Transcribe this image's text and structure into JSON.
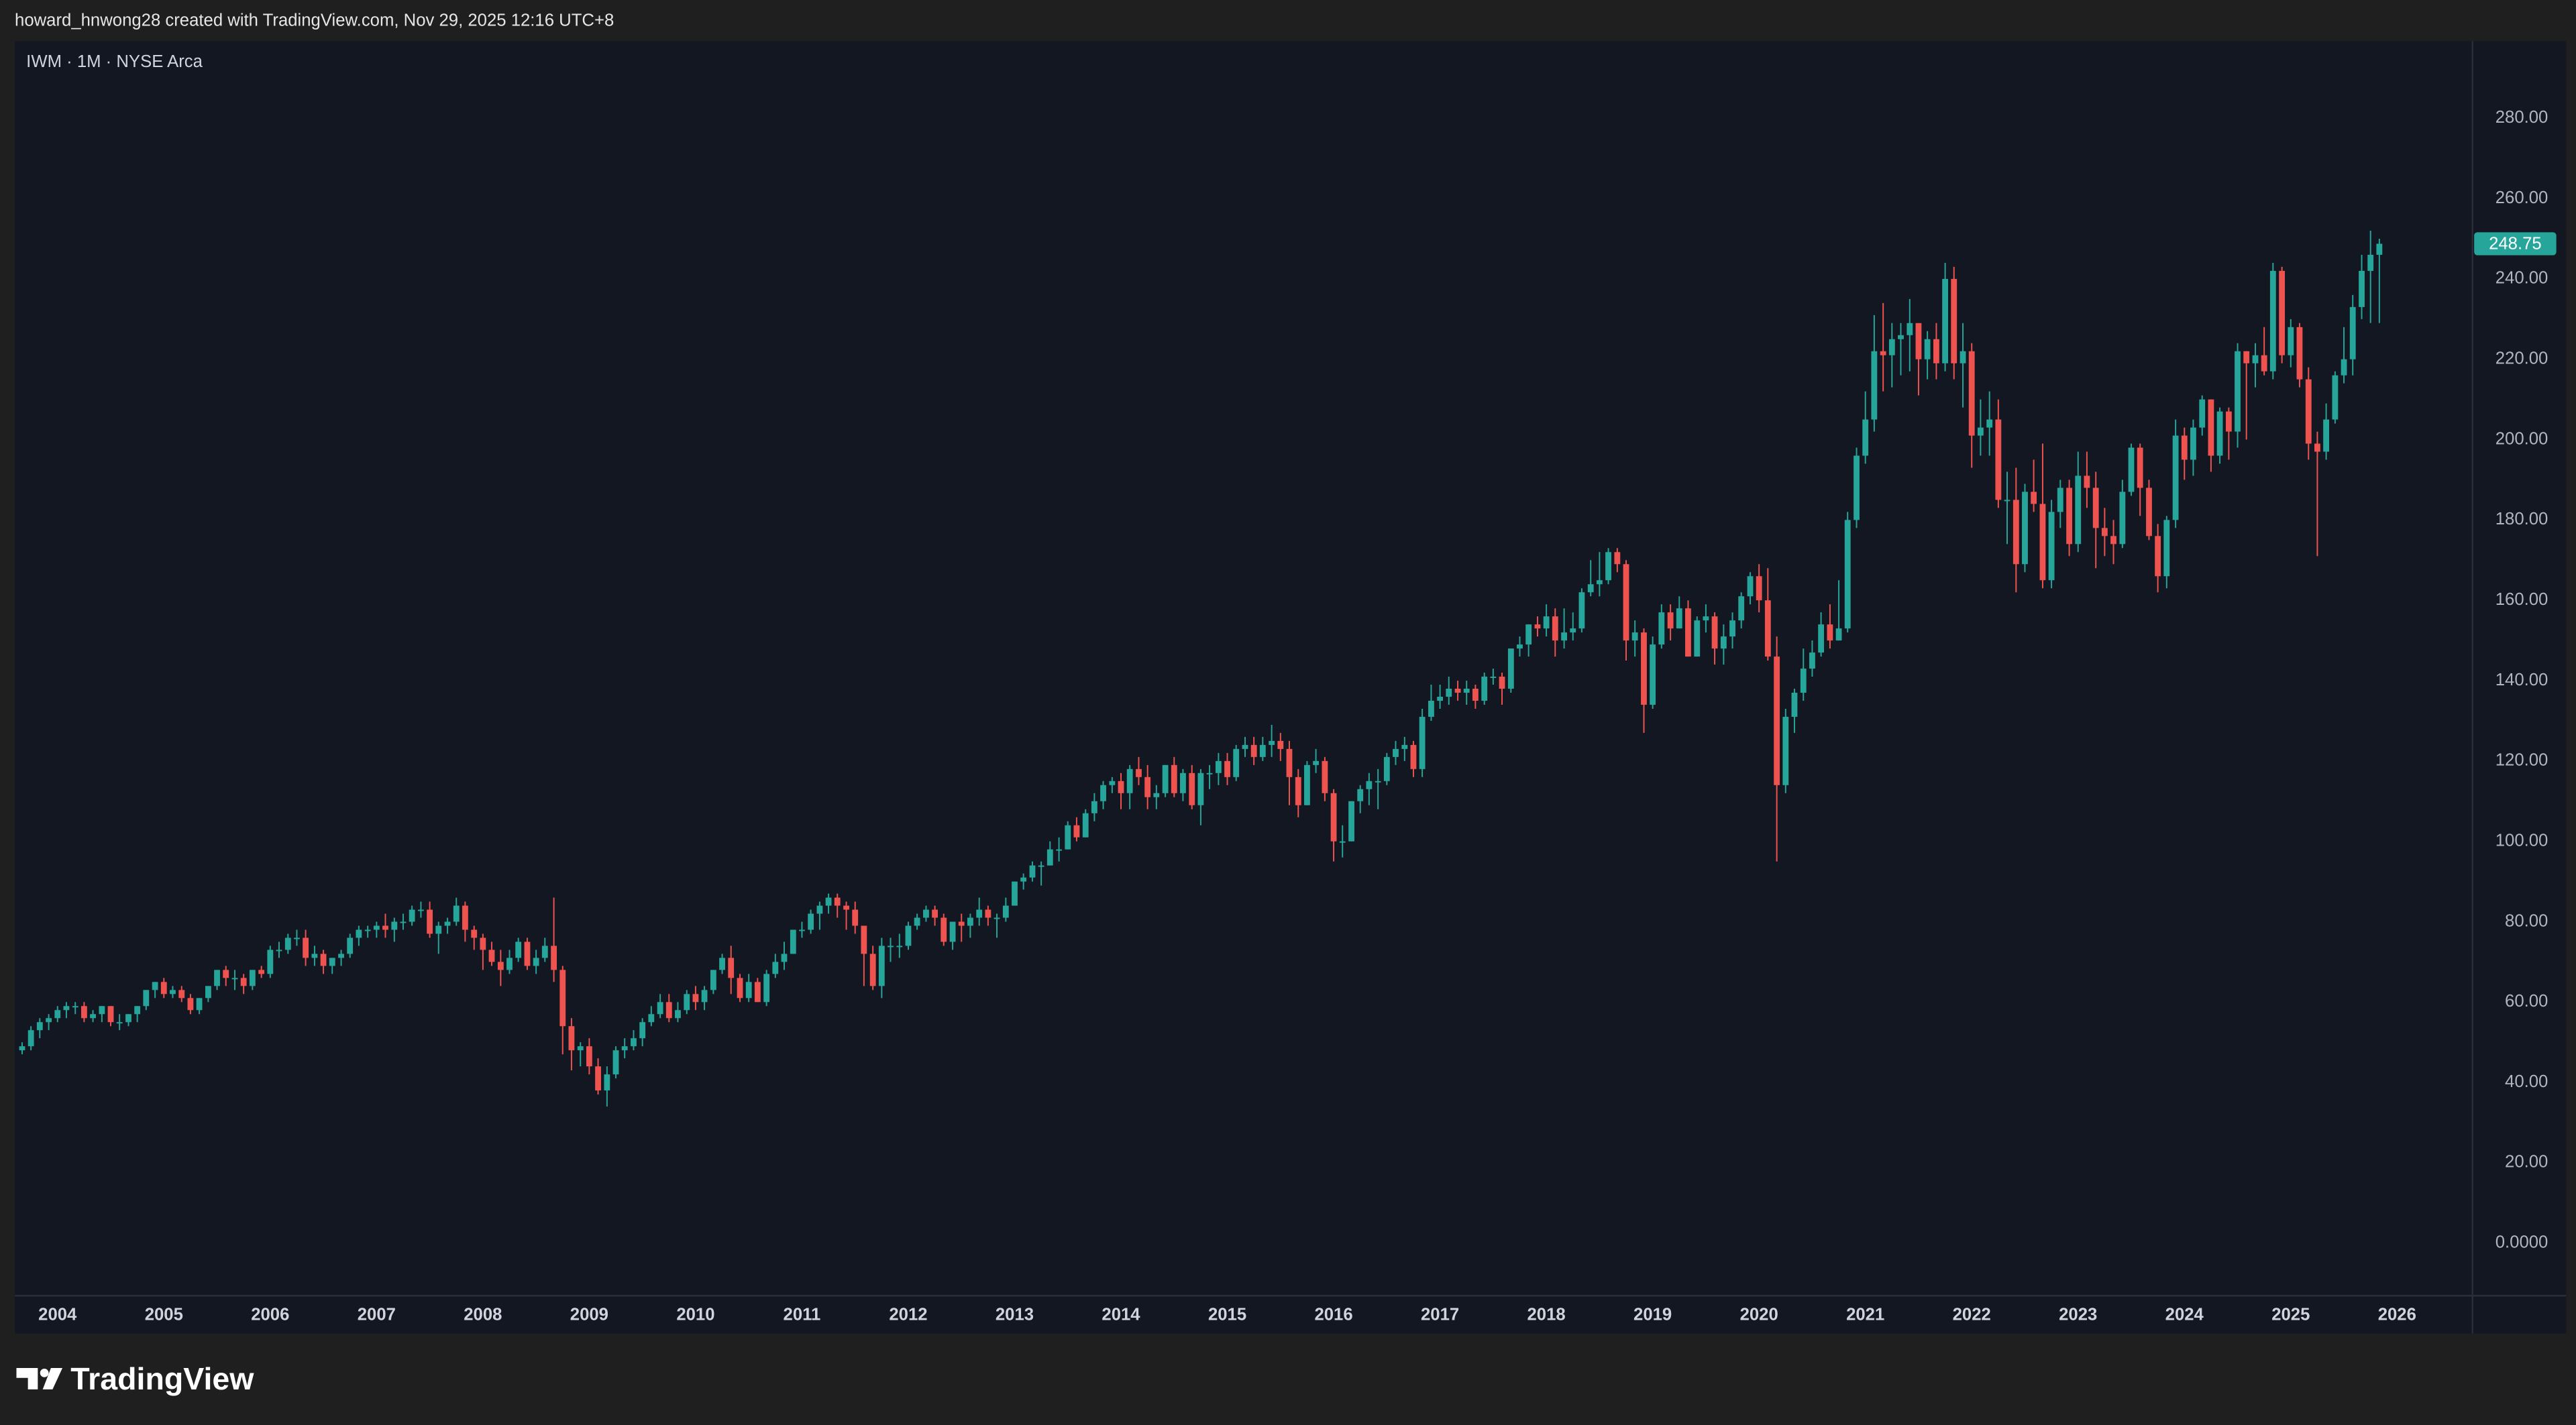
{
  "header": {
    "attribution": "howard_hnwong28 created with TradingView.com, Nov 29, 2025 12:16 UTC+8"
  },
  "footer": {
    "brand": "TradingView"
  },
  "chart_data": {
    "type": "candlestick",
    "title": "IWM · 1M · NYSE Arca",
    "up_color": "#26a69a",
    "down_color": "#ef5350",
    "grid": false,
    "xlim": [
      2003.598,
      2026.709
    ],
    "xticks": [
      2004,
      2005,
      2006,
      2007,
      2008,
      2009,
      2010,
      2011,
      2012,
      2013,
      2014,
      2015,
      2016,
      2017,
      2018,
      2019,
      2020,
      2021,
      2022,
      2023,
      2024,
      2025,
      2026
    ],
    "ylim": [
      -13.1,
      299.2
    ],
    "yticks": [
      {
        "value": 0,
        "label": "0.0000"
      },
      {
        "value": 20,
        "label": "20.00"
      },
      {
        "value": 40,
        "label": "40.00"
      },
      {
        "value": 60,
        "label": "60.00"
      },
      {
        "value": 80,
        "label": "80.00"
      },
      {
        "value": 100,
        "label": "100.00"
      },
      {
        "value": 120,
        "label": "120.00"
      },
      {
        "value": 140,
        "label": "140.00"
      },
      {
        "value": 160,
        "label": "160.00"
      },
      {
        "value": 180,
        "label": "180.00"
      },
      {
        "value": 200,
        "label": "200.00"
      },
      {
        "value": 220,
        "label": "220.00"
      },
      {
        "value": 240,
        "label": "240.00"
      },
      {
        "value": 260,
        "label": "260.00"
      },
      {
        "value": 280,
        "label": "280.00"
      }
    ],
    "x": [
      2003.667,
      2003.75,
      2003.833,
      2003.917,
      2004,
      2004.083,
      2004.167,
      2004.25,
      2004.333,
      2004.417,
      2004.5,
      2004.583,
      2004.667,
      2004.75,
      2004.833,
      2004.917,
      2005,
      2005.083,
      2005.167,
      2005.25,
      2005.333,
      2005.417,
      2005.5,
      2005.583,
      2005.667,
      2005.75,
      2005.833,
      2005.917,
      2006,
      2006.083,
      2006.167,
      2006.25,
      2006.333,
      2006.417,
      2006.5,
      2006.583,
      2006.667,
      2006.75,
      2006.833,
      2006.917,
      2007,
      2007.083,
      2007.167,
      2007.25,
      2007.333,
      2007.417,
      2007.5,
      2007.583,
      2007.667,
      2007.75,
      2007.833,
      2007.917,
      2008,
      2008.083,
      2008.167,
      2008.25,
      2008.333,
      2008.417,
      2008.5,
      2008.583,
      2008.667,
      2008.75,
      2008.833,
      2008.917,
      2009,
      2009.083,
      2009.167,
      2009.25,
      2009.333,
      2009.417,
      2009.5,
      2009.583,
      2009.667,
      2009.75,
      2009.833,
      2009.917,
      2010,
      2010.083,
      2010.167,
      2010.25,
      2010.333,
      2010.417,
      2010.5,
      2010.583,
      2010.667,
      2010.75,
      2010.833,
      2010.917,
      2011,
      2011.083,
      2011.167,
      2011.25,
      2011.333,
      2011.417,
      2011.5,
      2011.583,
      2011.667,
      2011.75,
      2011.833,
      2011.917,
      2012,
      2012.083,
      2012.167,
      2012.25,
      2012.333,
      2012.417,
      2012.5,
      2012.583,
      2012.667,
      2012.75,
      2012.833,
      2012.917,
      2013,
      2013.083,
      2013.167,
      2013.25,
      2013.333,
      2013.417,
      2013.5,
      2013.583,
      2013.667,
      2013.75,
      2013.833,
      2013.917,
      2014,
      2014.083,
      2014.167,
      2014.25,
      2014.333,
      2014.417,
      2014.5,
      2014.583,
      2014.667,
      2014.75,
      2014.833,
      2014.917,
      2015,
      2015.083,
      2015.167,
      2015.25,
      2015.333,
      2015.417,
      2015.5,
      2015.583,
      2015.667,
      2015.75,
      2015.833,
      2015.917,
      2016,
      2016.083,
      2016.167,
      2016.25,
      2016.333,
      2016.417,
      2016.5,
      2016.583,
      2016.667,
      2016.75,
      2016.833,
      2016.917,
      2017,
      2017.083,
      2017.167,
      2017.25,
      2017.333,
      2017.417,
      2017.5,
      2017.583,
      2017.667,
      2017.75,
      2017.833,
      2017.917,
      2018,
      2018.083,
      2018.167,
      2018.25,
      2018.333,
      2018.417,
      2018.5,
      2018.583,
      2018.667,
      2018.75,
      2018.833,
      2018.917,
      2019,
      2019.083,
      2019.167,
      2019.25,
      2019.333,
      2019.417,
      2019.5,
      2019.583,
      2019.667,
      2019.75,
      2019.833,
      2019.917,
      2020,
      2020.083,
      2020.167,
      2020.25,
      2020.333,
      2020.417,
      2020.5,
      2020.583,
      2020.667,
      2020.75,
      2020.833,
      2020.917,
      2021,
      2021.083,
      2021.167,
      2021.25,
      2021.333,
      2021.417,
      2021.5,
      2021.583,
      2021.667,
      2021.75,
      2021.833,
      2021.917,
      2022,
      2022.083,
      2022.167,
      2022.25,
      2022.333,
      2022.417,
      2022.5,
      2022.583,
      2022.667,
      2022.75,
      2022.833,
      2022.917,
      2023,
      2023.083,
      2023.167,
      2023.25,
      2023.333,
      2023.417,
      2023.5,
      2023.583,
      2023.667,
      2023.75,
      2023.833,
      2023.917,
      2024,
      2024.083,
      2024.167,
      2024.25,
      2024.333,
      2024.417,
      2024.5,
      2024.583,
      2024.667,
      2024.75,
      2024.833,
      2024.917,
      2025,
      2025.083,
      2025.167,
      2025.25,
      2025.333,
      2025.417,
      2025.5,
      2025.583,
      2025.667,
      2025.75,
      2025.833
    ],
    "open": [
      48,
      49,
      53,
      55,
      56,
      58,
      59,
      59,
      56,
      57,
      59,
      55,
      55,
      57,
      59,
      63,
      65,
      62,
      63,
      61,
      58,
      61,
      64,
      68,
      66,
      66,
      64,
      68,
      67,
      73,
      73,
      76,
      76,
      71,
      72,
      69,
      71,
      72,
      76,
      78,
      78,
      79,
      78,
      80,
      80,
      83,
      83,
      77,
      79,
      80,
      84,
      78,
      76,
      73,
      70,
      68,
      71,
      75,
      69,
      71,
      74,
      68,
      54,
      48,
      49,
      44,
      38,
      42,
      48,
      49,
      51,
      55,
      57,
      60,
      56,
      58,
      62,
      60,
      63,
      68,
      71,
      66,
      61,
      65,
      60,
      67,
      70,
      72,
      78,
      78,
      82,
      84,
      86,
      84,
      83,
      79,
      72,
      64,
      74,
      74,
      74,
      79,
      81,
      83,
      81,
      75,
      80,
      79,
      81,
      83,
      81,
      81,
      84,
      90,
      91,
      94,
      94,
      98,
      98,
      104,
      101,
      107,
      110,
      114,
      115,
      112,
      118,
      116,
      111,
      112,
      119,
      112,
      117,
      109,
      117,
      117,
      120,
      116,
      123,
      124,
      121,
      124,
      125,
      123,
      116,
      109,
      119,
      120,
      112,
      100,
      100,
      110,
      113,
      115,
      115,
      121,
      123,
      124,
      118,
      131,
      135,
      136,
      138,
      137,
      138,
      135,
      141,
      141,
      138,
      148,
      149,
      154,
      153,
      156,
      150,
      152,
      153,
      162,
      164,
      165,
      172,
      169,
      150,
      152,
      134,
      149,
      157,
      153,
      158,
      146,
      155,
      156,
      148,
      151,
      155,
      161,
      166,
      160,
      146,
      114,
      131,
      137,
      143,
      147,
      154,
      150,
      153,
      180,
      196,
      205,
      222,
      221,
      225,
      226,
      229,
      220,
      225,
      219,
      240,
      219,
      222,
      201,
      203,
      205,
      185,
      185,
      169,
      187,
      184,
      165,
      182,
      188,
      174,
      191,
      188,
      178,
      176,
      174,
      187,
      198,
      188,
      176,
      166,
      180,
      201,
      195,
      203,
      210,
      196,
      207,
      202,
      222,
      219,
      221,
      217,
      242,
      221,
      228,
      215,
      199,
      197,
      205,
      216,
      220,
      233,
      242,
      246
    ],
    "high": [
      50,
      54,
      56,
      57,
      59,
      60,
      60,
      60,
      58,
      59,
      59,
      57,
      57,
      59,
      63,
      65,
      66,
      64,
      64,
      62,
      61,
      64,
      68,
      69,
      68,
      67,
      68,
      69,
      74,
      75,
      77,
      78,
      78,
      74,
      73,
      71,
      73,
      77,
      79,
      79,
      80,
      82,
      81,
      82,
      84,
      85,
      85,
      80,
      81,
      86,
      85,
      79,
      77,
      75,
      73,
      73,
      76,
      76,
      73,
      76,
      86,
      69,
      56,
      50,
      51,
      46,
      44,
      49,
      51,
      53,
      56,
      59,
      62,
      62,
      60,
      63,
      64,
      64,
      68,
      72,
      74,
      67,
      67,
      66,
      68,
      72,
      75,
      78,
      80,
      83,
      85,
      87,
      87,
      85,
      85,
      79,
      74,
      76,
      76,
      77,
      80,
      82,
      84,
      84,
      82,
      80,
      82,
      82,
      86,
      84,
      82,
      86,
      90,
      92,
      95,
      95,
      100,
      101,
      105,
      106,
      108,
      112,
      115,
      116,
      117,
      119,
      121,
      119,
      114,
      119,
      121,
      118,
      119,
      118,
      119,
      122,
      122,
      124,
      126,
      126,
      126,
      129,
      127,
      125,
      118,
      120,
      123,
      121,
      113,
      104,
      110,
      114,
      117,
      118,
      122,
      125,
      126,
      125,
      133,
      139,
      139,
      141,
      140,
      140,
      139,
      142,
      143,
      142,
      148,
      151,
      154,
      156,
      159,
      158,
      158,
      157,
      163,
      170,
      172,
      173,
      173,
      170,
      155,
      153,
      151,
      159,
      159,
      161,
      160,
      156,
      159,
      157,
      154,
      157,
      162,
      167,
      169,
      168,
      151,
      133,
      138,
      148,
      150,
      157,
      159,
      165,
      182,
      198,
      212,
      231,
      234,
      229,
      229,
      235,
      229,
      227,
      229,
      244,
      243,
      229,
      224,
      210,
      212,
      210,
      192,
      193,
      189,
      195,
      199,
      185,
      190,
      190,
      197,
      197,
      192,
      183,
      180,
      190,
      199,
      199,
      190,
      179,
      181,
      205,
      203,
      205,
      211,
      210,
      208,
      208,
      224,
      222,
      224,
      228,
      244,
      243,
      230,
      229,
      218,
      202,
      209,
      217,
      228,
      236,
      246,
      252,
      250
    ],
    "low": [
      47,
      48,
      51,
      53,
      55,
      56,
      57,
      55,
      55,
      55,
      54,
      53,
      54,
      55,
      58,
      61,
      61,
      61,
      60,
      57,
      57,
      60,
      63,
      64,
      63,
      62,
      63,
      66,
      66,
      71,
      72,
      74,
      69,
      69,
      67,
      67,
      69,
      71,
      74,
      76,
      76,
      76,
      75,
      78,
      79,
      81,
      76,
      72,
      77,
      79,
      75,
      73,
      68,
      69,
      64,
      67,
      70,
      68,
      67,
      70,
      65,
      47,
      43,
      44,
      42,
      37,
      34,
      41,
      46,
      48,
      49,
      54,
      56,
      55,
      55,
      57,
      58,
      58,
      62,
      67,
      62,
      60,
      60,
      60,
      59,
      66,
      68,
      72,
      76,
      77,
      78,
      82,
      81,
      78,
      77,
      64,
      63,
      61,
      70,
      71,
      73,
      78,
      80,
      79,
      74,
      73,
      75,
      76,
      79,
      79,
      76,
      80,
      84,
      88,
      90,
      89,
      94,
      95,
      98,
      100,
      101,
      105,
      108,
      112,
      108,
      108,
      114,
      108,
      108,
      111,
      111,
      110,
      108,
      104,
      113,
      114,
      114,
      115,
      121,
      119,
      120,
      121,
      120,
      109,
      106,
      109,
      117,
      110,
      95,
      96,
      100,
      107,
      109,
      108,
      114,
      119,
      120,
      116,
      116,
      130,
      133,
      134,
      135,
      134,
      133,
      134,
      139,
      134,
      137,
      146,
      146,
      151,
      151,
      146,
      148,
      150,
      152,
      161,
      161,
      164,
      167,
      145,
      146,
      127,
      133,
      148,
      150,
      153,
      146,
      146,
      152,
      144,
      144,
      148,
      153,
      159,
      157,
      145,
      95,
      112,
      127,
      135,
      141,
      146,
      148,
      150,
      152,
      178,
      194,
      202,
      212,
      213,
      216,
      217,
      211,
      215,
      215,
      217,
      215,
      208,
      193,
      196,
      196,
      183,
      174,
      162,
      167,
      182,
      163,
      163,
      178,
      171,
      172,
      183,
      168,
      171,
      169,
      173,
      186,
      181,
      175,
      162,
      163,
      178,
      190,
      191,
      201,
      192,
      194,
      195,
      198,
      200,
      213,
      216,
      215,
      219,
      218,
      213,
      195,
      171,
      195,
      204,
      214,
      216,
      230,
      229,
      229
    ],
    "close": [
      49,
      53,
      55,
      56,
      58,
      59,
      59,
      56,
      57,
      59,
      55,
      55,
      57,
      59,
      63,
      65,
      62,
      63,
      61,
      58,
      61,
      64,
      68,
      66,
      66,
      64,
      68,
      67,
      73,
      73,
      76,
      76,
      71,
      72,
      69,
      71,
      72,
      76,
      78,
      78,
      79,
      78,
      80,
      80,
      83,
      83,
      77,
      79,
      80,
      84,
      78,
      76,
      73,
      70,
      68,
      71,
      75,
      69,
      71,
      74,
      68,
      54,
      48,
      49,
      44,
      38,
      42,
      48,
      49,
      51,
      55,
      57,
      60,
      56,
      58,
      62,
      60,
      63,
      68,
      71,
      66,
      61,
      65,
      60,
      67,
      70,
      72,
      78,
      78,
      82,
      84,
      86,
      84,
      83,
      79,
      72,
      64,
      74,
      74,
      74,
      79,
      81,
      83,
      81,
      75,
      80,
      79,
      81,
      83,
      81,
      81,
      84,
      90,
      91,
      94,
      94,
      98,
      98,
      104,
      101,
      107,
      110,
      114,
      115,
      112,
      118,
      116,
      111,
      112,
      119,
      112,
      117,
      109,
      117,
      117,
      120,
      116,
      123,
      124,
      121,
      124,
      125,
      123,
      116,
      109,
      119,
      120,
      112,
      100,
      100,
      110,
      113,
      115,
      115,
      121,
      123,
      124,
      118,
      131,
      135,
      136,
      138,
      137,
      138,
      135,
      141,
      141,
      138,
      148,
      149,
      154,
      153,
      156,
      150,
      152,
      153,
      162,
      164,
      165,
      172,
      169,
      150,
      152,
      134,
      149,
      157,
      153,
      158,
      146,
      155,
      156,
      148,
      151,
      155,
      161,
      166,
      160,
      146,
      114,
      131,
      137,
      143,
      147,
      154,
      150,
      153,
      180,
      196,
      205,
      222,
      221,
      225,
      226,
      229,
      220,
      225,
      219,
      240,
      219,
      222,
      201,
      203,
      205,
      185,
      185,
      169,
      187,
      184,
      165,
      182,
      188,
      174,
      191,
      188,
      178,
      176,
      174,
      187,
      198,
      188,
      176,
      166,
      180,
      201,
      195,
      203,
      210,
      196,
      207,
      202,
      222,
      219,
      221,
      217,
      242,
      221,
      228,
      215,
      199,
      197,
      205,
      216,
      220,
      233,
      242,
      246,
      248.75
    ]
  }
}
